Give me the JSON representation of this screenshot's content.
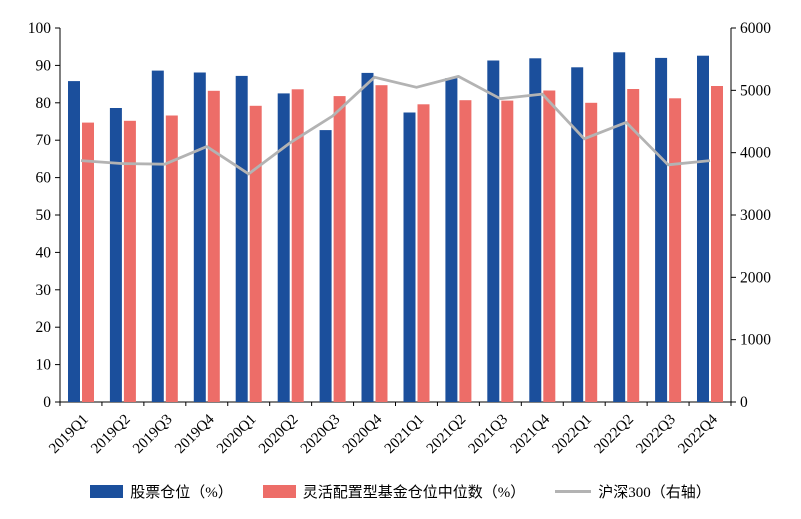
{
  "chart_data": {
    "type": "bar+line",
    "title": "",
    "categories": [
      "2019Q1",
      "2019Q2",
      "2019Q3",
      "2019Q4",
      "2020Q1",
      "2020Q2",
      "2020Q3",
      "2020Q4",
      "2021Q1",
      "2021Q2",
      "2021Q3",
      "2021Q4",
      "2022Q1",
      "2022Q2",
      "2022Q3",
      "2022Q4"
    ],
    "series": [
      {
        "name": "股票仓位（%）",
        "key": "stock-position",
        "type": "bar",
        "axis": "left",
        "color": "#1B4F9C",
        "values": [
          85.8,
          78.6,
          88.6,
          88.1,
          87.2,
          82.5,
          72.7,
          88.0,
          77.4,
          86.6,
          91.3,
          91.9,
          89.5,
          93.5,
          92.0,
          92.6
        ]
      },
      {
        "name": "灵活配置型基金仓位中位数（%）",
        "key": "flexible-fund-median",
        "type": "bar",
        "axis": "left",
        "color": "#ED6D68",
        "values": [
          74.7,
          75.2,
          76.6,
          83.2,
          79.2,
          83.6,
          81.8,
          84.7,
          79.6,
          80.7,
          80.6,
          83.3,
          80.0,
          83.7,
          81.2,
          84.5
        ]
      },
      {
        "name": "沪深300（右轴）",
        "key": "csi300",
        "type": "line",
        "axis": "right",
        "color": "#B3B3B3",
        "values": [
          3872,
          3825,
          3815,
          4097,
          3659,
          4164,
          4588,
          5211,
          5048,
          5224,
          4866,
          4940,
          4223,
          4485,
          3805,
          3872
        ]
      }
    ],
    "left_axis": {
      "min": 0,
      "max": 100,
      "step": 10,
      "tick_labels": [
        "0",
        "10",
        "20",
        "30",
        "40",
        "50",
        "60",
        "70",
        "80",
        "90",
        "100"
      ]
    },
    "right_axis": {
      "min": 0,
      "max": 6000,
      "step": 1000,
      "tick_labels": [
        "0",
        "1000",
        "2000",
        "3000",
        "4000",
        "5000",
        "6000"
      ]
    },
    "grid": false,
    "legend_position": "bottom"
  }
}
